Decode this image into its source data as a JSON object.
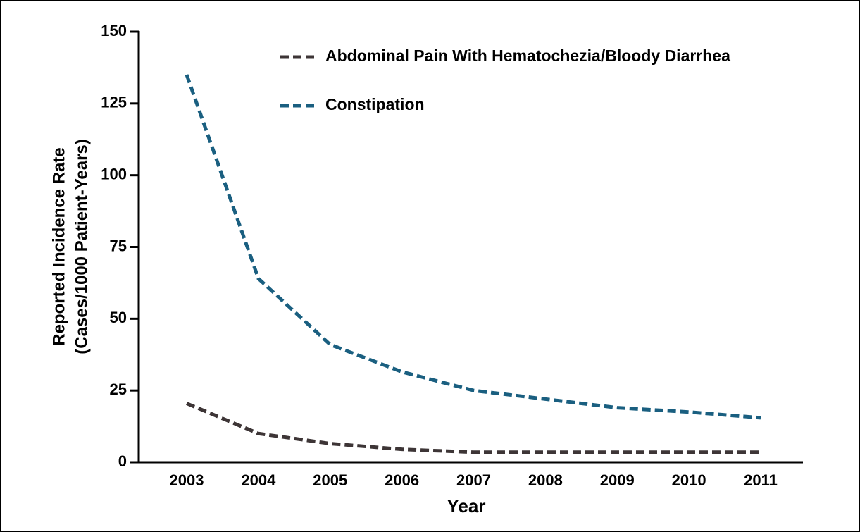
{
  "chart_data": {
    "type": "line",
    "xlabel": "Year",
    "ylabel": [
      "Reported Incidence Rate",
      "(Cases/1000 Patient-Years)"
    ],
    "categories": [
      "2003",
      "2004",
      "2005",
      "2006",
      "2007",
      "2008",
      "2009",
      "2010",
      "2011"
    ],
    "series": [
      {
        "name": "Abdominal Pain With Hematochezia/Bloody Diarrhea",
        "color": "#3d3536",
        "values": [
          20.5,
          10,
          6.5,
          4.5,
          3.5,
          3.5,
          3.5,
          3.5,
          3.5
        ]
      },
      {
        "name": "Constipation",
        "color": "#1a5f80",
        "values": [
          135,
          64,
          41,
          31.5,
          25,
          22,
          19,
          17.5,
          15.5
        ]
      }
    ],
    "ylim": [
      0,
      150
    ],
    "yticks": [
      0,
      25,
      50,
      75,
      100,
      125,
      150
    ],
    "legend": "top"
  }
}
